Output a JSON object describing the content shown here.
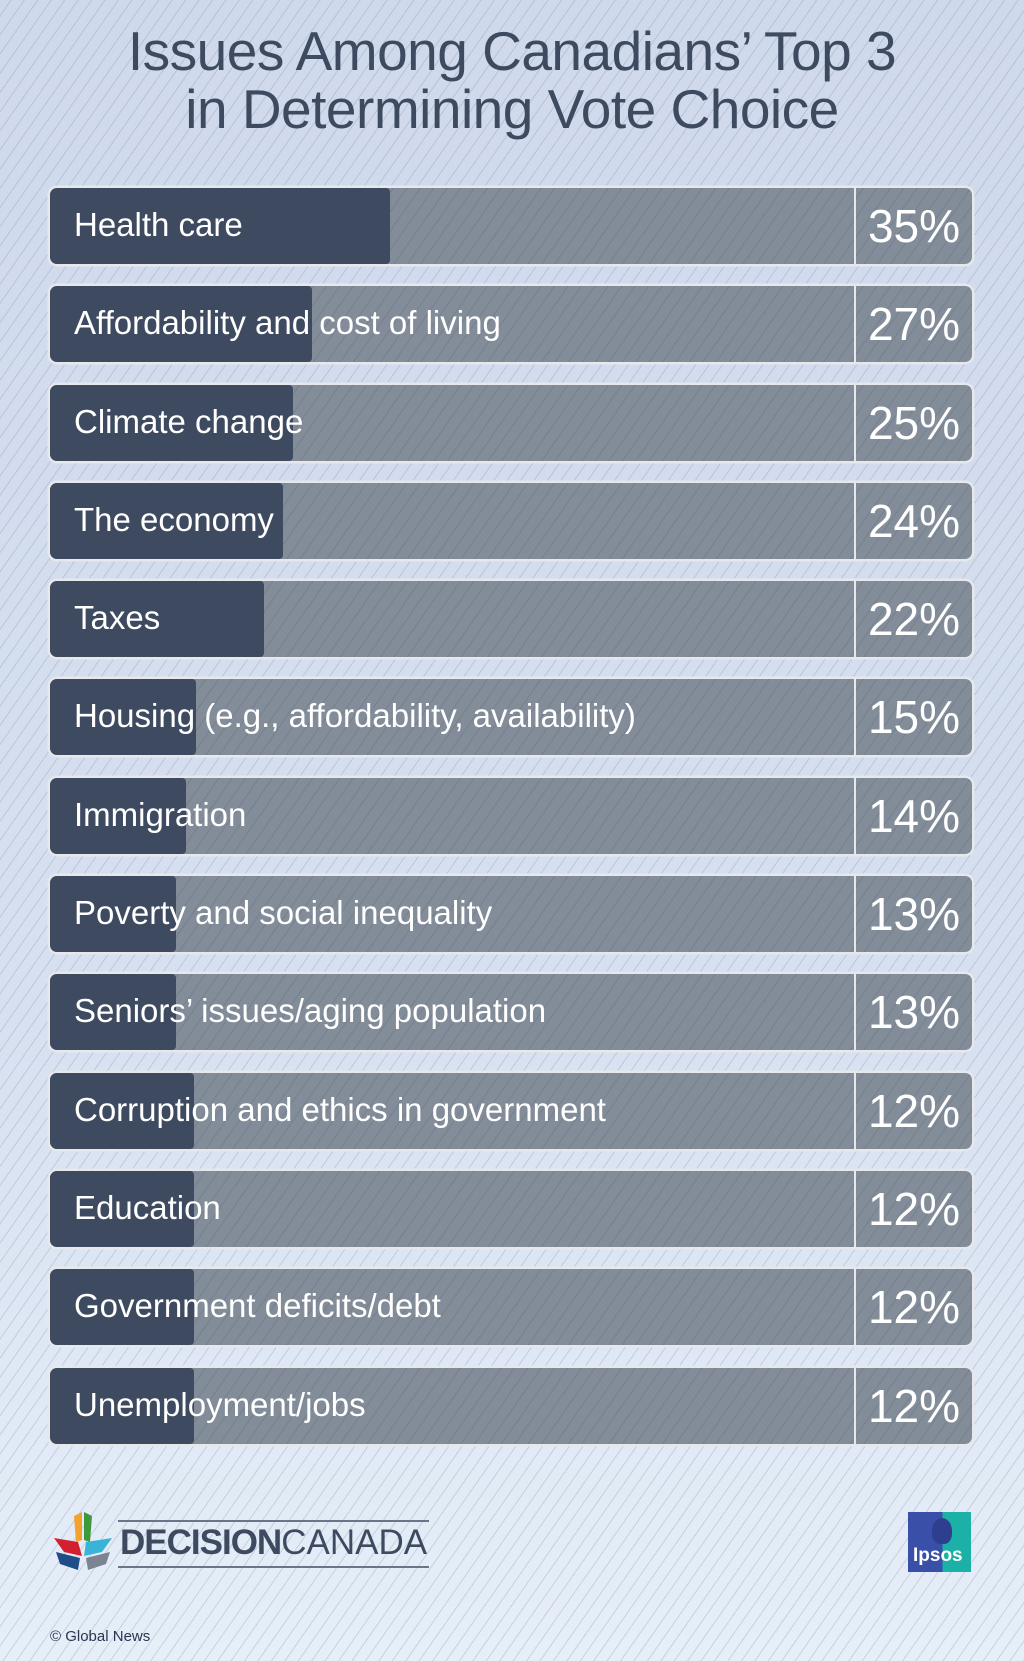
{
  "title": {
    "line1": "Issues Among Canadians’ Top 3",
    "line2": "in Determining Vote Choice"
  },
  "rows": [
    {
      "label": "Health care",
      "value": "35%"
    },
    {
      "label": "Affordability and cost of living",
      "value": "27%"
    },
    {
      "label": "Climate change",
      "value": "25%"
    },
    {
      "label": "The economy",
      "value": "24%"
    },
    {
      "label": "Taxes",
      "value": "22%"
    },
    {
      "label": "Housing (e.g., affordability, availability)",
      "value": "15%"
    },
    {
      "label": "Immigration",
      "value": "14%"
    },
    {
      "label": "Poverty and social inequality",
      "value": "13%"
    },
    {
      "label": "Seniors’ issues/aging population",
      "value": "13%"
    },
    {
      "label": "Corruption and ethics in government",
      "value": "12%"
    },
    {
      "label": "Education",
      "value": "12%"
    },
    {
      "label": "Government deficits/debt",
      "value": "12%"
    },
    {
      "label": "Unemployment/jobs",
      "value": "12%"
    }
  ],
  "footer": {
    "brand_bold": "DECISION",
    "brand_light": "CANADA",
    "partner": "Ipsos",
    "credit": "© Global News"
  },
  "colors": {
    "background": "#d3ddef",
    "fill": "#3e4a60",
    "track": "#838d99",
    "title": "#3d4a60",
    "border": "#e6e8ec"
  },
  "chart_data": {
    "type": "bar",
    "orientation": "horizontal",
    "title": "Issues Among Canadians’ Top 3 in Determining Vote Choice",
    "categories": [
      "Health care",
      "Affordability and cost of living",
      "Climate change",
      "The economy",
      "Taxes",
      "Housing (e.g., affordability, availability)",
      "Immigration",
      "Poverty and social inequality",
      "Seniors’ issues/aging population",
      "Corruption and ethics in government",
      "Education",
      "Government deficits/debt",
      "Unemployment/jobs"
    ],
    "values": [
      35,
      27,
      25,
      24,
      22,
      15,
      14,
      13,
      13,
      12,
      12,
      12,
      12
    ],
    "unit": "%",
    "xlabel": "",
    "ylabel": "",
    "grid": false,
    "legend": null,
    "source": "Ipsos",
    "credit": "© Global News"
  }
}
